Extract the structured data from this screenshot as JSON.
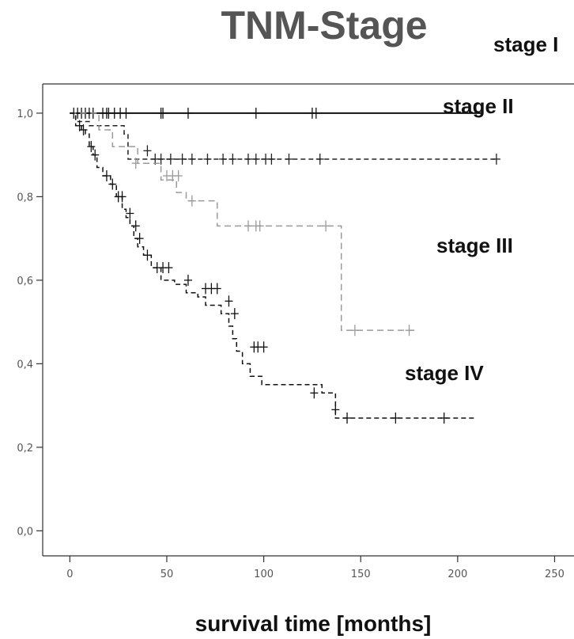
{
  "chart_data": {
    "type": "line",
    "title": "TNM-Stage",
    "xlabel": "survival time [months]",
    "ylabel": "",
    "xlim": [
      -14,
      260
    ],
    "ylim": [
      -0.06,
      1.07
    ],
    "x_ticks": [
      "0",
      "50",
      "100",
      "150",
      "200",
      "250"
    ],
    "x_tick_values": [
      0,
      50,
      100,
      150,
      200,
      250
    ],
    "y_ticks": [
      "0,0",
      "0,2",
      "0,4",
      "0,6",
      "0,8",
      "1,0"
    ],
    "y_tick_values": [
      0,
      0.2,
      0.4,
      0.6,
      0.8,
      1.0
    ],
    "grid": false,
    "series": [
      {
        "name": "stage I",
        "color": "#111111",
        "dash": "",
        "steps": [
          [
            0,
            1.0
          ],
          [
            212,
            1.0
          ]
        ],
        "censored": [
          [
            2,
            1.0
          ],
          [
            4,
            1.0
          ],
          [
            6,
            1.0
          ],
          [
            8,
            1.0
          ],
          [
            10,
            1.0
          ],
          [
            12,
            1.0
          ],
          [
            17,
            1.0
          ],
          [
            19,
            1.0
          ],
          [
            20,
            1.0
          ],
          [
            23,
            1.0
          ],
          [
            26,
            1.0
          ],
          [
            29,
            1.0
          ],
          [
            47,
            1.0
          ],
          [
            48,
            1.0
          ],
          [
            61,
            1.0
          ],
          [
            96,
            1.0
          ],
          [
            125,
            1.0
          ],
          [
            127,
            1.0
          ]
        ]
      },
      {
        "name": "stage II",
        "color": "#222222",
        "dash": "6,4",
        "steps": [
          [
            0,
            1.0
          ],
          [
            3,
            0.98
          ],
          [
            10,
            0.97
          ],
          [
            28,
            0.97
          ],
          [
            28,
            0.95
          ],
          [
            30,
            0.95
          ],
          [
            30,
            0.89
          ],
          [
            220,
            0.89
          ]
        ],
        "censored": [
          [
            40,
            0.91
          ],
          [
            44,
            0.89
          ],
          [
            47,
            0.89
          ],
          [
            52,
            0.89
          ],
          [
            58,
            0.89
          ],
          [
            63,
            0.89
          ],
          [
            71,
            0.89
          ],
          [
            79,
            0.89
          ],
          [
            84,
            0.89
          ],
          [
            92,
            0.89
          ],
          [
            96,
            0.89
          ],
          [
            101,
            0.89
          ],
          [
            104,
            0.89
          ],
          [
            113,
            0.89
          ],
          [
            129,
            0.89
          ],
          [
            220,
            0.89
          ]
        ]
      },
      {
        "name": "stage III",
        "color": "#9a9a9a",
        "dash": "8,5",
        "steps": [
          [
            0,
            1.0
          ],
          [
            15,
            1.0
          ],
          [
            15,
            0.96
          ],
          [
            22,
            0.96
          ],
          [
            22,
            0.92
          ],
          [
            35,
            0.92
          ],
          [
            35,
            0.88
          ],
          [
            47,
            0.88
          ],
          [
            47,
            0.84
          ],
          [
            55,
            0.84
          ],
          [
            55,
            0.81
          ],
          [
            60,
            0.81
          ],
          [
            60,
            0.79
          ],
          [
            76,
            0.79
          ],
          [
            76,
            0.73
          ],
          [
            140,
            0.73
          ],
          [
            140,
            0.48
          ],
          [
            178,
            0.48
          ]
        ],
        "censored": [
          [
            34,
            0.88
          ],
          [
            50,
            0.85
          ],
          [
            53,
            0.85
          ],
          [
            56,
            0.85
          ],
          [
            63,
            0.79
          ],
          [
            92,
            0.73
          ],
          [
            96,
            0.73
          ],
          [
            98,
            0.73
          ],
          [
            132,
            0.73
          ],
          [
            147,
            0.48
          ],
          [
            175,
            0.48
          ]
        ]
      },
      {
        "name": "stage IV",
        "color": "#111111",
        "dash": "6,4",
        "steps": [
          [
            0,
            1.0
          ],
          [
            3,
            0.97
          ],
          [
            6,
            0.96
          ],
          [
            8,
            0.95
          ],
          [
            10,
            0.92
          ],
          [
            12,
            0.9
          ],
          [
            14,
            0.87
          ],
          [
            17,
            0.85
          ],
          [
            21,
            0.83
          ],
          [
            24,
            0.8
          ],
          [
            27,
            0.77
          ],
          [
            29,
            0.75
          ],
          [
            31,
            0.73
          ],
          [
            33,
            0.7
          ],
          [
            35,
            0.68
          ],
          [
            38,
            0.66
          ],
          [
            42,
            0.63
          ],
          [
            47,
            0.6
          ],
          [
            54,
            0.59
          ],
          [
            60,
            0.57
          ],
          [
            66,
            0.56
          ],
          [
            70,
            0.54
          ],
          [
            78,
            0.52
          ],
          [
            82,
            0.49
          ],
          [
            84,
            0.46
          ],
          [
            86,
            0.43
          ],
          [
            89,
            0.4
          ],
          [
            93,
            0.37
          ],
          [
            99,
            0.35
          ],
          [
            130,
            0.33
          ],
          [
            137,
            0.3
          ],
          [
            137,
            0.27
          ],
          [
            210,
            0.27
          ]
        ],
        "censored": [
          [
            5,
            0.97
          ],
          [
            7,
            0.96
          ],
          [
            11,
            0.92
          ],
          [
            13,
            0.9
          ],
          [
            19,
            0.85
          ],
          [
            22,
            0.83
          ],
          [
            25,
            0.8
          ],
          [
            27,
            0.8
          ],
          [
            31,
            0.76
          ],
          [
            34,
            0.73
          ],
          [
            36,
            0.7
          ],
          [
            40,
            0.66
          ],
          [
            45,
            0.63
          ],
          [
            48,
            0.63
          ],
          [
            51,
            0.63
          ],
          [
            61,
            0.6
          ],
          [
            70,
            0.58
          ],
          [
            73,
            0.58
          ],
          [
            76,
            0.58
          ],
          [
            82,
            0.55
          ],
          [
            85,
            0.52
          ],
          [
            95,
            0.44
          ],
          [
            97,
            0.44
          ],
          [
            100,
            0.44
          ],
          [
            126,
            0.33
          ],
          [
            137,
            0.29
          ],
          [
            143,
            0.27
          ],
          [
            168,
            0.27
          ],
          [
            193,
            0.27
          ]
        ]
      }
    ],
    "annotations": [
      {
        "text": "stage I",
        "series": "stage I"
      },
      {
        "text": "stage II",
        "series": "stage II"
      },
      {
        "text": "stage III",
        "series": "stage III"
      },
      {
        "text": "stage IV",
        "series": "stage IV"
      }
    ]
  }
}
